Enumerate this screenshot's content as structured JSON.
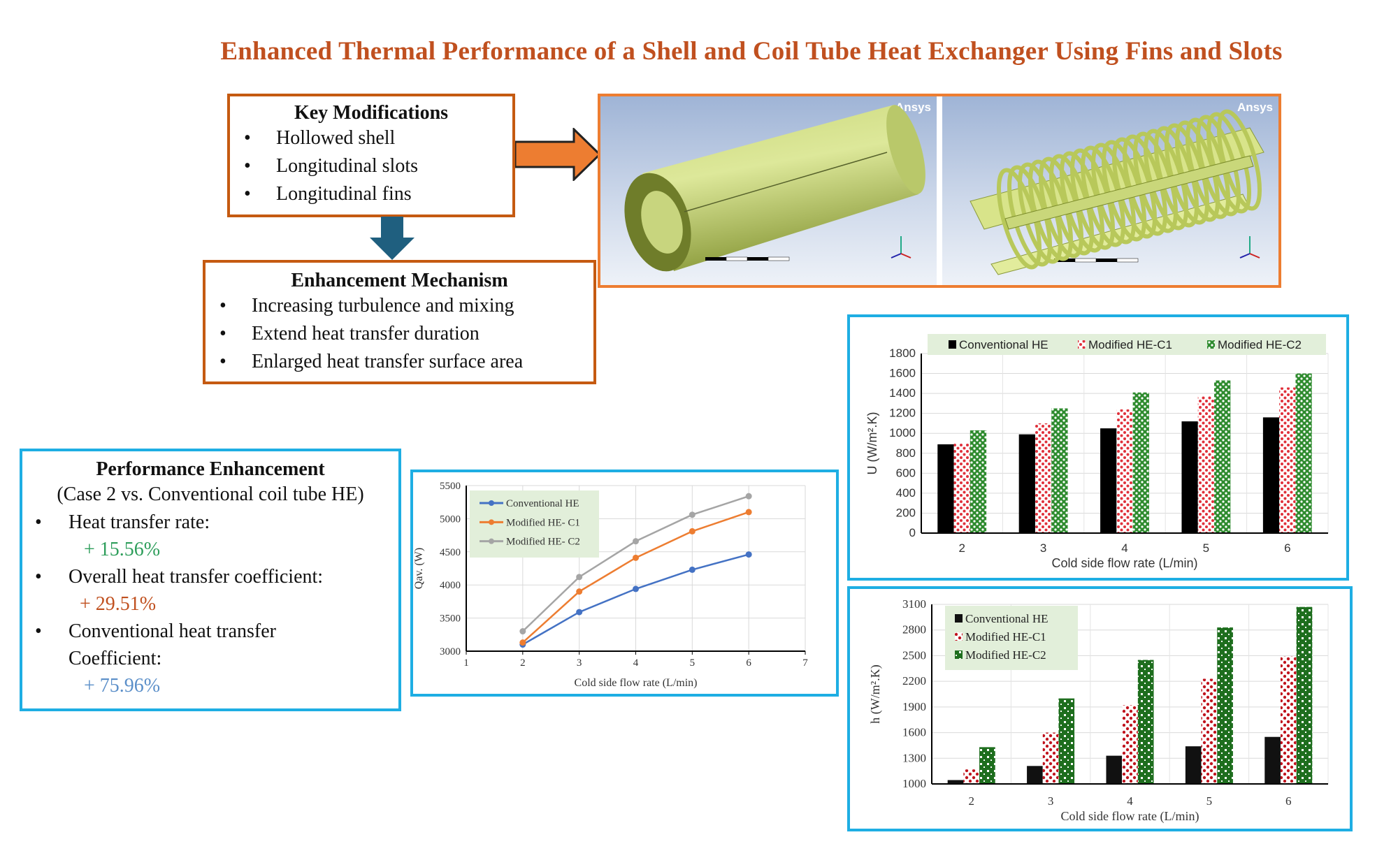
{
  "title": "Enhanced Thermal Performance of a Shell and Coil Tube Heat Exchanger Using Fins and Slots",
  "key_modifications": {
    "heading": "Key Modifications",
    "items": [
      "Hollowed shell",
      "Longitudinal slots",
      "Longitudinal fins"
    ]
  },
  "enhancement_mechanism": {
    "heading": "Enhancement Mechanism",
    "items": [
      "Increasing turbulence and mixing",
      "Extend heat transfer duration",
      "Enlarged heat transfer surface area"
    ]
  },
  "performance": {
    "heading": "Performance Enhancement",
    "subheading": "(Case 2 vs. Conventional coil tube HE)",
    "items": [
      {
        "label": "Heat transfer rate:",
        "value": "+ 15.56%",
        "color": "#2e9e5b"
      },
      {
        "label": "Overall heat transfer coefficient:",
        "value": "+ 29.51%",
        "color": "#c0501f"
      },
      {
        "label": "Conventional heat transfer",
        "label2": "Coefficient:",
        "value": "+ 75.96%",
        "color": "#5b8fc9"
      }
    ]
  },
  "images": {
    "left_watermark": "Ansys",
    "right_watermark": "Ansys"
  },
  "colors": {
    "title": "#c0501f",
    "orange_border": "#c55a11",
    "cyan_border": "#1eaee3",
    "arrow_right": "#ed7d31",
    "arrow_down": "#1f5f7f"
  },
  "chart_data": [
    {
      "type": "line",
      "xlabel": "Cold side flow rate (L/min)",
      "ylabel": "Qav. (W)",
      "x": [
        2,
        3,
        4,
        5,
        6
      ],
      "xlim": [
        1,
        7
      ],
      "xticks": [
        "1",
        "2",
        "3",
        "4",
        "5",
        "6",
        "7"
      ],
      "ylim": [
        3000,
        5500
      ],
      "yticks": [
        "3000",
        "3500",
        "4000",
        "4500",
        "5000",
        "5500"
      ],
      "grid": true,
      "legend": "top-left",
      "series": [
        {
          "name": "Conventional HE",
          "color": "#4472c4",
          "values": [
            3100,
            3590,
            3940,
            4230,
            4460
          ]
        },
        {
          "name": "Modified HE- C1",
          "color": "#ed7d31",
          "values": [
            3130,
            3900,
            4410,
            4810,
            5100
          ]
        },
        {
          "name": "Modified HE- C2",
          "color": "#a5a5a5",
          "values": [
            3300,
            4120,
            4660,
            5060,
            5340
          ]
        }
      ]
    },
    {
      "type": "bar",
      "xlabel": "Cold side flow rate (L/min)",
      "ylabel": "U (W/m².K)",
      "categories": [
        "2",
        "3",
        "4",
        "5",
        "6"
      ],
      "ylim": [
        0,
        1800
      ],
      "yticks": [
        "0",
        "200",
        "400",
        "600",
        "800",
        "1000",
        "1200",
        "1400",
        "1600",
        "1800"
      ],
      "grid": true,
      "legend": "top",
      "series": [
        {
          "name": "Conventional HE",
          "color": "#000000",
          "values": [
            890,
            990,
            1050,
            1120,
            1160
          ]
        },
        {
          "name": "Modified HE-C1",
          "color": "#e0303a",
          "values": [
            900,
            1100,
            1240,
            1370,
            1460
          ]
        },
        {
          "name": "Modified HE-C2",
          "color": "#2e8b2e",
          "values": [
            1030,
            1250,
            1410,
            1530,
            1600
          ]
        }
      ]
    },
    {
      "type": "bar",
      "xlabel": "Cold side flow rate (L/min)",
      "ylabel": "h (W/m².K)",
      "categories": [
        "2",
        "3",
        "4",
        "5",
        "6"
      ],
      "ylim": [
        1000,
        3100
      ],
      "yticks": [
        "1000",
        "1300",
        "1600",
        "1900",
        "2200",
        "2500",
        "2800",
        "3100"
      ],
      "grid": true,
      "legend": "top-left",
      "series": [
        {
          "name": "Conventional HE",
          "color": "#000000",
          "values": [
            1045,
            1210,
            1330,
            1440,
            1550
          ]
        },
        {
          "name": "Modified HE-C1",
          "color": "#c0141e",
          "values": [
            1170,
            1600,
            1920,
            2230,
            2490
          ]
        },
        {
          "name": "Modified HE-C2",
          "color": "#1e6e1e",
          "values": [
            1430,
            2000,
            2450,
            2830,
            3070
          ]
        }
      ]
    }
  ]
}
